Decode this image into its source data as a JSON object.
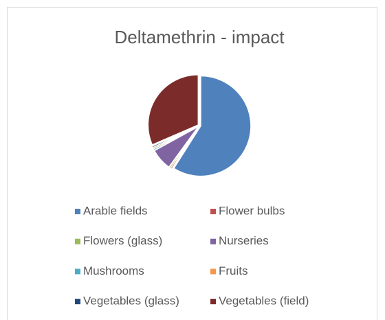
{
  "chart_data": {
    "type": "pie",
    "title": "Deltamethrin - impact",
    "categories": [
      "Arable fields",
      "Flower bulbs",
      "Flowers (glass)",
      "Nurseries",
      "Mushrooms",
      "Fruits",
      "Vegetables (glass)",
      "Vegetables (field)"
    ],
    "values": [
      59,
      0.5,
      0.5,
      7,
      0.5,
      0.5,
      0.5,
      31.5
    ],
    "colors": [
      "#4f81bd",
      "#c0504d",
      "#9bbb59",
      "#8064a2",
      "#4bacc6",
      "#f79646",
      "#1f497d",
      "#7b2c2a"
    ],
    "legend": "bottom"
  }
}
